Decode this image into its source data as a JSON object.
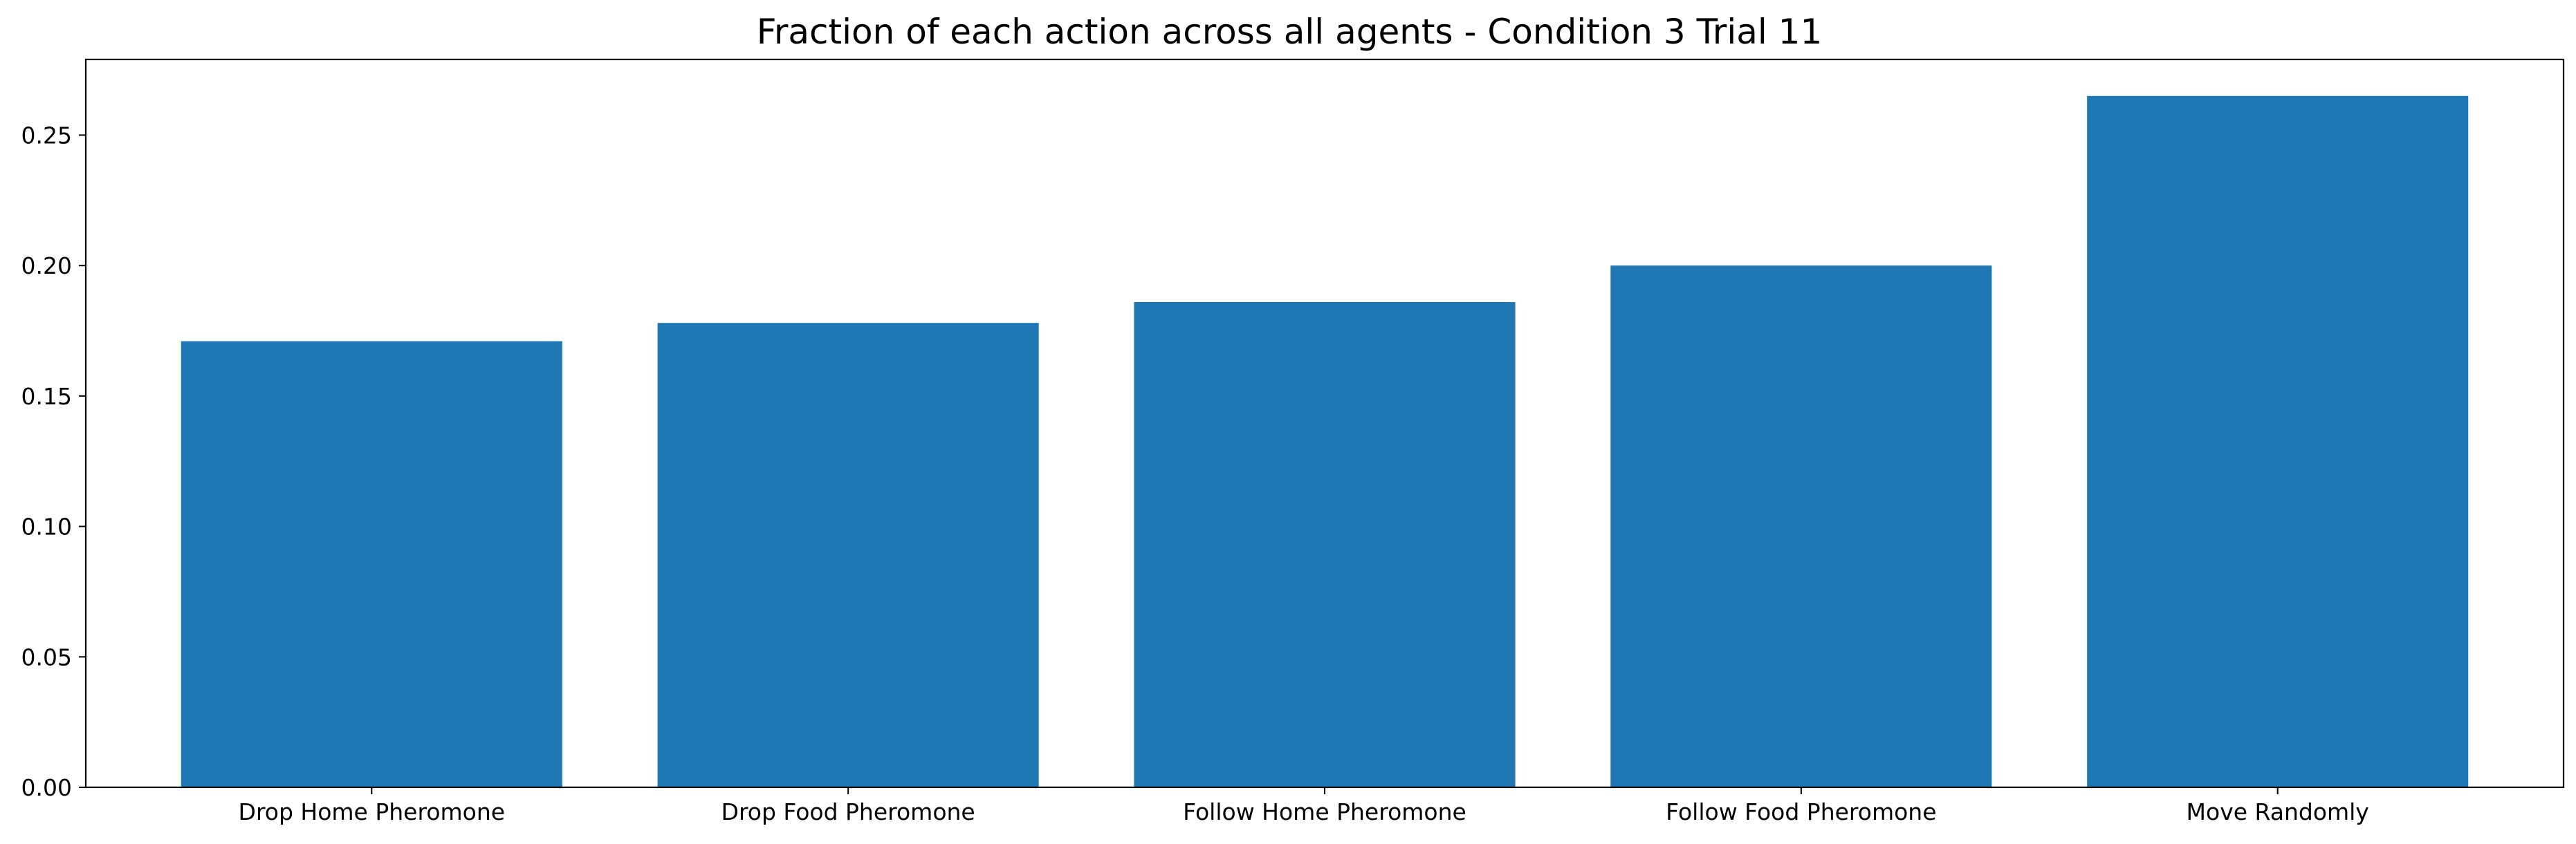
{
  "chart_data": {
    "type": "bar",
    "title": "Fraction of each action across all agents - Condition 3 Trial 11",
    "xlabel": "",
    "ylabel": "",
    "categories": [
      "Drop Home Pheromone",
      "Drop Food Pheromone",
      "Follow Home Pheromone",
      "Follow Food Pheromone",
      "Move Randomly"
    ],
    "values": [
      0.171,
      0.178,
      0.186,
      0.2,
      0.265
    ],
    "ylim": [
      0,
      0.279
    ],
    "yticks": [
      0.0,
      0.05,
      0.1,
      0.15,
      0.2,
      0.25
    ],
    "ytick_labels": [
      "0.00",
      "0.05",
      "0.10",
      "0.15",
      "0.20",
      "0.25"
    ],
    "bar_color": "#1f77b4",
    "grid": false,
    "legend": false
  }
}
